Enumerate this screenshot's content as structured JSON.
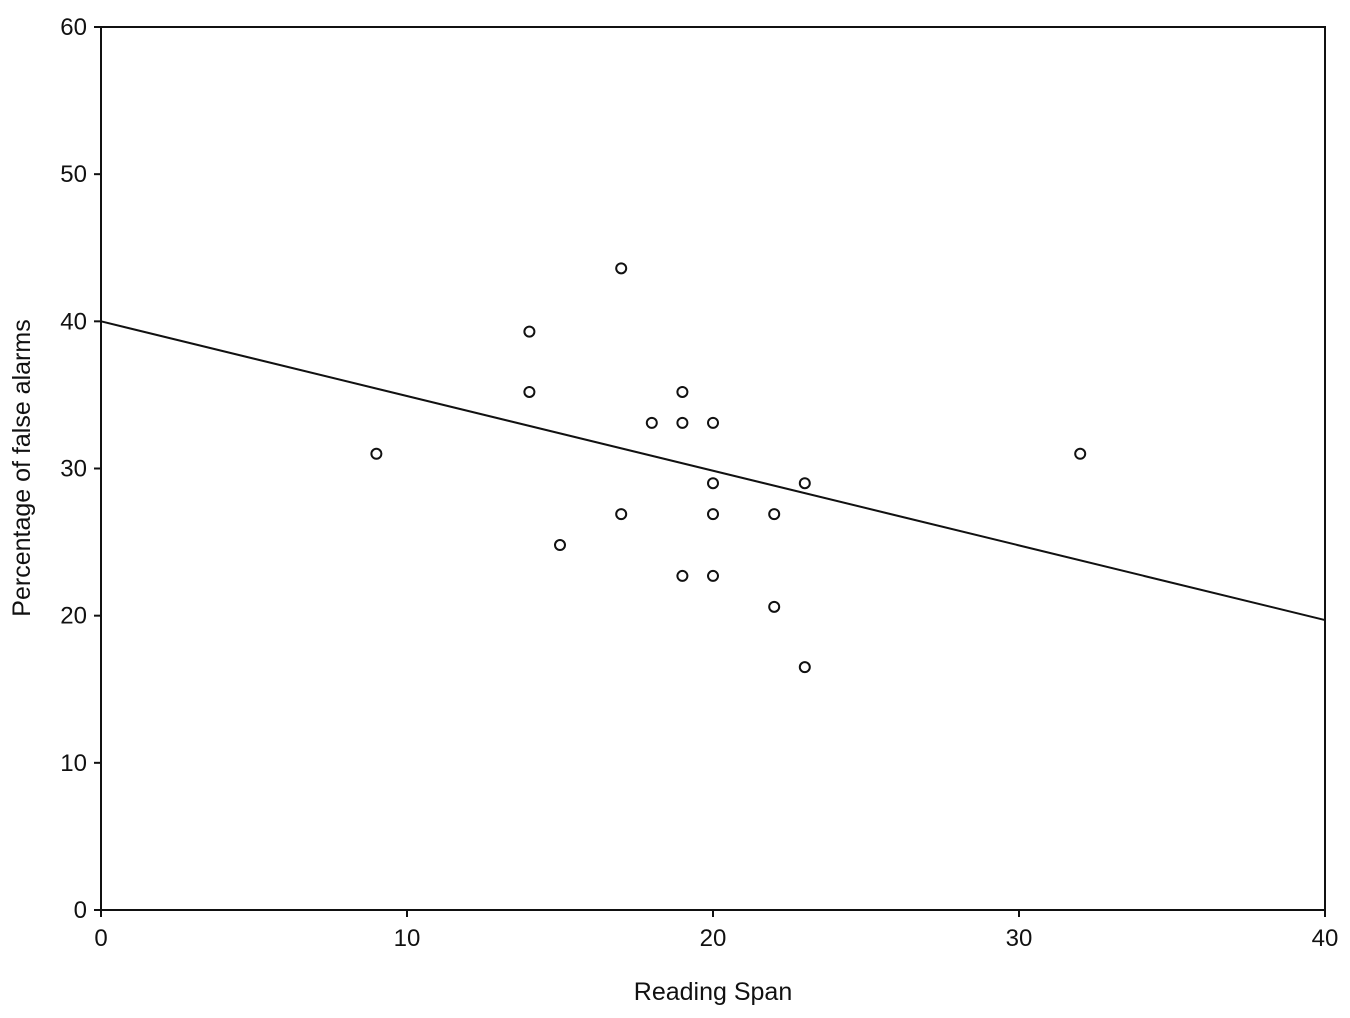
{
  "chart_data": {
    "type": "scatter",
    "title": "",
    "xlabel": "Reading Span",
    "ylabel": "Percentage of false alarms",
    "xlim": [
      0,
      40
    ],
    "ylim": [
      0,
      60
    ],
    "x_ticks": [
      0,
      10,
      20,
      30,
      40
    ],
    "y_ticks": [
      0,
      10,
      20,
      30,
      40,
      50,
      60
    ],
    "grid": false,
    "legend": "none",
    "marker": "open-circle",
    "colors": {
      "marker": "#111111",
      "line": "#111111",
      "frame": "#111111"
    },
    "points": [
      {
        "x": 9,
        "y": 31
      },
      {
        "x": 14,
        "y": 39.3
      },
      {
        "x": 14,
        "y": 35.2
      },
      {
        "x": 15,
        "y": 24.8
      },
      {
        "x": 17,
        "y": 43.6
      },
      {
        "x": 17,
        "y": 26.9
      },
      {
        "x": 18,
        "y": 33.1
      },
      {
        "x": 19,
        "y": 35.2
      },
      {
        "x": 19,
        "y": 33.1
      },
      {
        "x": 19,
        "y": 22.7
      },
      {
        "x": 20,
        "y": 33.1
      },
      {
        "x": 20,
        "y": 29
      },
      {
        "x": 20,
        "y": 26.9
      },
      {
        "x": 20,
        "y": 22.7
      },
      {
        "x": 22,
        "y": 26.9
      },
      {
        "x": 22,
        "y": 20.6
      },
      {
        "x": 23,
        "y": 29
      },
      {
        "x": 23,
        "y": 16.5
      },
      {
        "x": 32,
        "y": 31
      }
    ],
    "fit_line": {
      "x": [
        0,
        40
      ],
      "y": [
        40,
        19.7
      ]
    }
  }
}
